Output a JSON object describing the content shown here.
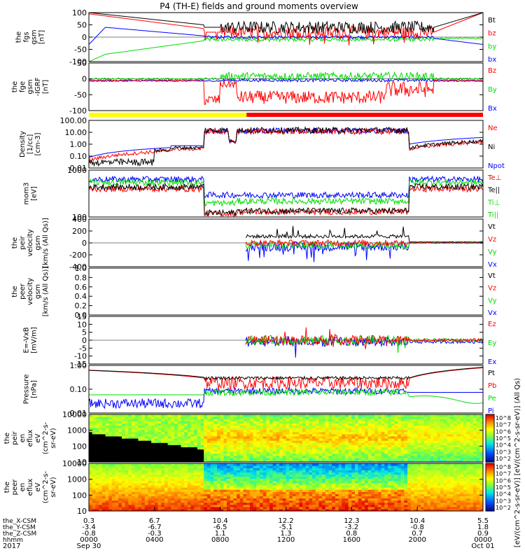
{
  "title": "P4 (TH-E) fields and ground moments overview",
  "year": "2017",
  "colors": {
    "black": "#000000",
    "red": "#ff0000",
    "green": "#00dd00",
    "blue": "#0000ff",
    "yellow": "#ffff00"
  },
  "chart_data": {
    "type": "line",
    "x_axis": {
      "rows": [
        {
          "label": "the_X-CSM",
          "values": [
            "0.3",
            "6.7",
            "10.4",
            "12.2",
            "12.3",
            "10.4",
            "5.5"
          ]
        },
        {
          "label": "the_Y-CSM",
          "values": [
            "-3.4",
            "-6.7",
            "-6.5",
            "-5.1",
            "-3.2",
            "-0.8",
            "1.8"
          ]
        },
        {
          "label": "the_Z-CSM",
          "values": [
            "-0.8",
            "-0.3",
            "1.1",
            "1.3",
            "0.8",
            "0.7",
            "0.9"
          ]
        },
        {
          "label": "hhmm",
          "values": [
            "0000",
            "0400",
            "0800",
            "1200",
            "1600",
            "2000",
            "0000"
          ]
        }
      ],
      "dates": [
        "Sep 30",
        "Oct 01"
      ],
      "range_hours": [
        0,
        24
      ]
    },
    "panels": [
      {
        "id": "fgs",
        "ylabel": [
          "the",
          "fgs",
          "gsm",
          "[nT]"
        ],
        "ylim": [
          -100,
          100
        ],
        "ticks": [
          "100",
          "50",
          "0",
          "-50",
          "-100"
        ],
        "legend": [
          {
            "text": "Bt",
            "color": "#000000"
          },
          {
            "text": "bz",
            "color": "#ff0000"
          },
          {
            "text": "by",
            "color": "#00dd00"
          },
          {
            "text": "bx",
            "color": "#0000ff"
          }
        ]
      },
      {
        "id": "fge",
        "ylabel": [
          "the",
          "fge",
          "gsm",
          "-IGRF",
          "[nT]"
        ],
        "ylim": [
          -120,
          60
        ],
        "ticks": [
          "50",
          "0",
          "-50",
          "-100"
        ],
        "legend": [
          {
            "text": "Bz",
            "color": "#ff0000"
          },
          {
            "text": "By",
            "color": "#00dd00"
          },
          {
            "text": "Bx",
            "color": "#0000ff"
          }
        ]
      },
      {
        "id": "density",
        "ylabel": [
          "Density",
          "[1/cc]",
          "[cm-3]"
        ],
        "ylim": [
          0.01,
          100
        ],
        "log": true,
        "ticks": [
          "100.00",
          "10.00",
          "1.00",
          "0.10",
          "0.01"
        ],
        "legend": [
          {
            "text": "Ne",
            "color": "#ff0000"
          },
          {
            "text": "Ni",
            "color": "#000000"
          },
          {
            "text": "Npot",
            "color": "#0000ff"
          }
        ]
      },
      {
        "id": "temp",
        "ylabel": [
          "mom3",
          "[eV]"
        ],
        "ylim": [
          50,
          10000
        ],
        "log": true,
        "ticks": [
          "1000",
          "100"
        ],
        "legend": [
          {
            "text": "Te⊥",
            "color": "#ff0000"
          },
          {
            "text": "Te||",
            "color": "#000000"
          },
          {
            "text": "Ti⊥",
            "color": "#00dd00"
          },
          {
            "text": "Ti||",
            "color": "#00dd00"
          }
        ]
      },
      {
        "id": "peir_vel",
        "ylabel": [
          "the",
          "peir",
          "velocity",
          "gsm",
          "[km/s (All Qs)]"
        ],
        "ylim": [
          -400,
          400
        ],
        "ticks": [
          "400",
          "200",
          "0",
          "-200",
          "-400"
        ],
        "legend": [
          {
            "text": "Vt",
            "color": "#000000"
          },
          {
            "text": "Vz",
            "color": "#ff0000"
          },
          {
            "text": "Vy",
            "color": "#00dd00"
          },
          {
            "text": "Vx",
            "color": "#0000ff"
          }
        ]
      },
      {
        "id": "peer_vel",
        "ylabel": [
          "the",
          "peer",
          "velocity",
          "gsm",
          "[km/s (All Qs)]"
        ],
        "ylim": [
          0,
          1
        ],
        "ticks": [
          "1.0",
          "0.8",
          "0.6",
          "0.4",
          "0.2",
          "0.0"
        ],
        "legend": [
          {
            "text": "Vt",
            "color": "#000000"
          },
          {
            "text": "Vz",
            "color": "#ff0000"
          },
          {
            "text": "Vy",
            "color": "#00dd00"
          },
          {
            "text": "Vx",
            "color": "#0000ff"
          }
        ]
      },
      {
        "id": "efield",
        "ylabel": [
          "E=-VxB",
          "[mV/m]"
        ],
        "ylim": [
          -15,
          15
        ],
        "ticks": [
          "15",
          "10",
          "5",
          "0",
          "-5",
          "-10",
          "-15"
        ],
        "legend": [
          {
            "text": "Ez",
            "color": "#ff0000"
          },
          {
            "text": "Ey",
            "color": "#00dd00"
          },
          {
            "text": "Ex",
            "color": "#0000ff"
          }
        ]
      },
      {
        "id": "pressure",
        "ylabel": [
          "Pressure",
          "[nPa]"
        ],
        "ylim": [
          0.005,
          5
        ],
        "log": true,
        "ticks": [
          "1.00",
          "0.10",
          "0.01"
        ],
        "legend": [
          {
            "text": "Pt",
            "color": "#000000"
          },
          {
            "text": "Pb",
            "color": "#ff0000"
          },
          {
            "text": "Pe",
            "color": "#00dd00"
          },
          {
            "text": "Pi",
            "color": "#0000ff"
          }
        ]
      },
      {
        "id": "peir_spec",
        "type": "heatmap",
        "ylabel": [
          "the",
          "peir",
          "en",
          "eflux",
          "eV",
          "(cm^2-s-",
          "sr-eV)"
        ],
        "ylim": [
          8,
          15000
        ],
        "log": true,
        "ticks": [
          "10000",
          "1000",
          "100",
          "10"
        ]
      },
      {
        "id": "peer_spec",
        "type": "heatmap",
        "ylabel": [
          "the",
          "peer",
          "en",
          "eflux",
          "eV",
          "(cm^2-s-",
          "sr-eV)"
        ],
        "ylim": [
          8,
          15000
        ],
        "log": true,
        "ticks": [
          "10000",
          "1000",
          "100",
          "10"
        ]
      }
    ],
    "colorbar": {
      "ticks_upper": [
        "10^8",
        "10^7",
        "10^6",
        "10^5",
        "10^4",
        "10^3",
        "10^2"
      ],
      "ticks_lower": [
        "10^8",
        "10^7",
        "10^6",
        "10^5",
        "10^4",
        "10^3",
        "10^2"
      ],
      "label": "[eV/(cm^2-s-sr-eV)] [eV/(cm^2-s-sr-eV)] (All Qs)"
    }
  }
}
